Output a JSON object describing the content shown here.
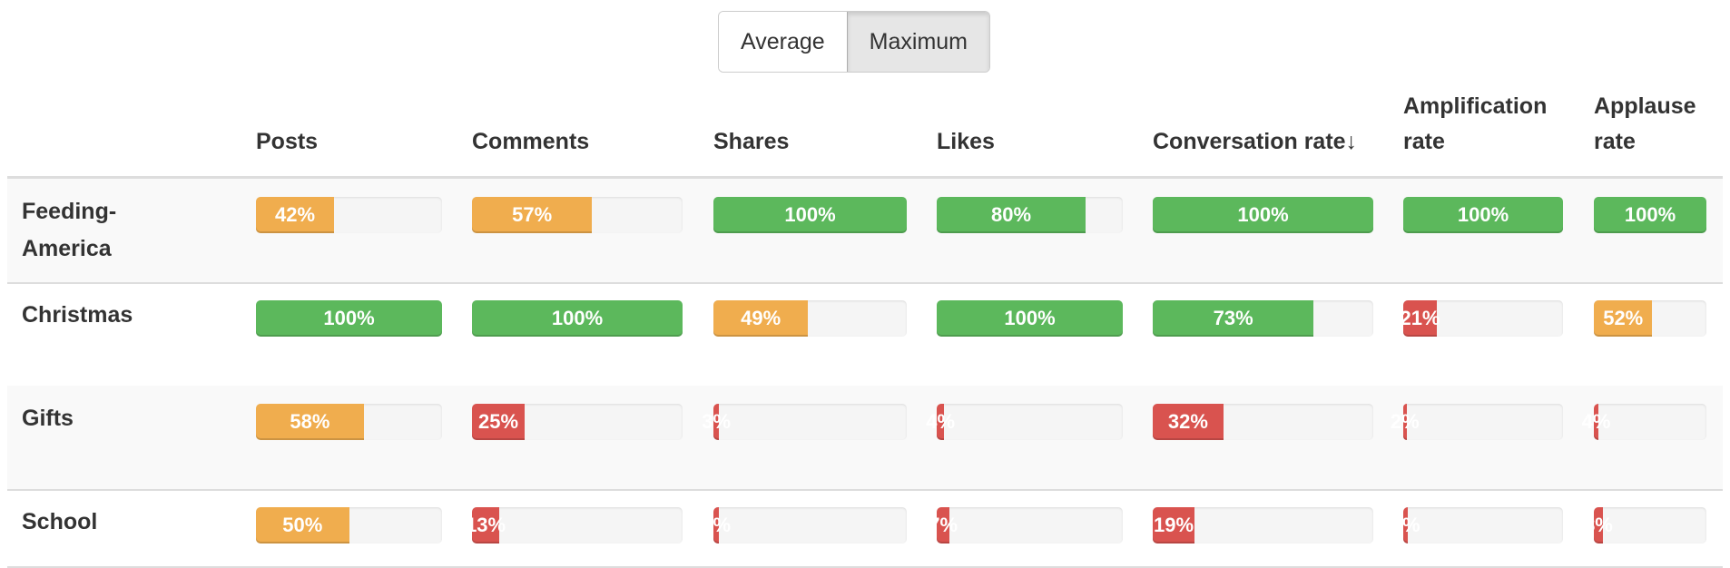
{
  "toggle": {
    "options": [
      "Average",
      "Maximum"
    ],
    "selected": "Maximum"
  },
  "columns": [
    "Posts",
    "Comments",
    "Shares",
    "Likes",
    "Conversation rate↓",
    "Amplification rate",
    "Applause rate"
  ],
  "colors": {
    "high": "#5cb85c",
    "medium": "#f0ad4e",
    "low": "#d9534f"
  },
  "rows": [
    {
      "label": "Feeding-America",
      "values": [
        42,
        57,
        100,
        80,
        100,
        100,
        100
      ]
    },
    {
      "label": "Christmas",
      "values": [
        100,
        100,
        49,
        100,
        73,
        21,
        52
      ]
    },
    {
      "label": "Gifts",
      "values": [
        58,
        25,
        3,
        4,
        32,
        2,
        4
      ]
    },
    {
      "label": "School",
      "values": [
        50,
        13,
        3,
        7,
        19,
        3,
        8
      ]
    }
  ]
}
